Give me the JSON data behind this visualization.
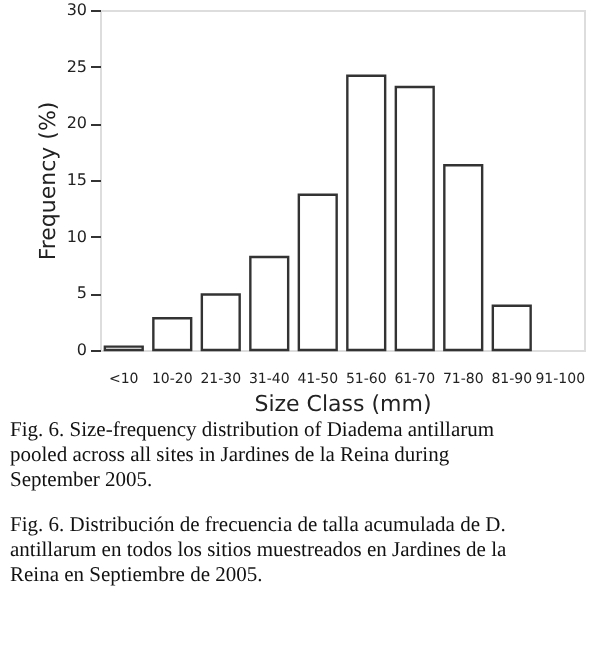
{
  "chart_data": {
    "type": "bar",
    "categories": [
      "<10",
      "10-20",
      "21-30",
      "31-40",
      "41-50",
      "51-60",
      "61-70",
      "71-80",
      "81-90",
      "91-100"
    ],
    "values": [
      0.3,
      2.8,
      4.9,
      8.2,
      13.7,
      24.2,
      23.2,
      16.3,
      3.9,
      0
    ],
    "color": "#ffffff",
    "xlabel": "Size Class (mm)",
    "ylabel": "Frequency (%)",
    "ylim": [
      0,
      30
    ],
    "yticks": [
      0,
      5,
      10,
      15,
      20,
      25,
      30
    ],
    "grid": false,
    "annotations": [
      "Fig. 6. Size-frequency distribution of Diadema antillarum pooled across all sites in Jardines de la Reina during September 2005.",
      "Fig. 6. Distribución de frecuencia de talla acumulada de D. antillarum en todos los sitios muestreados en Jardines de la Reina en Septiembre de 2005."
    ]
  }
}
